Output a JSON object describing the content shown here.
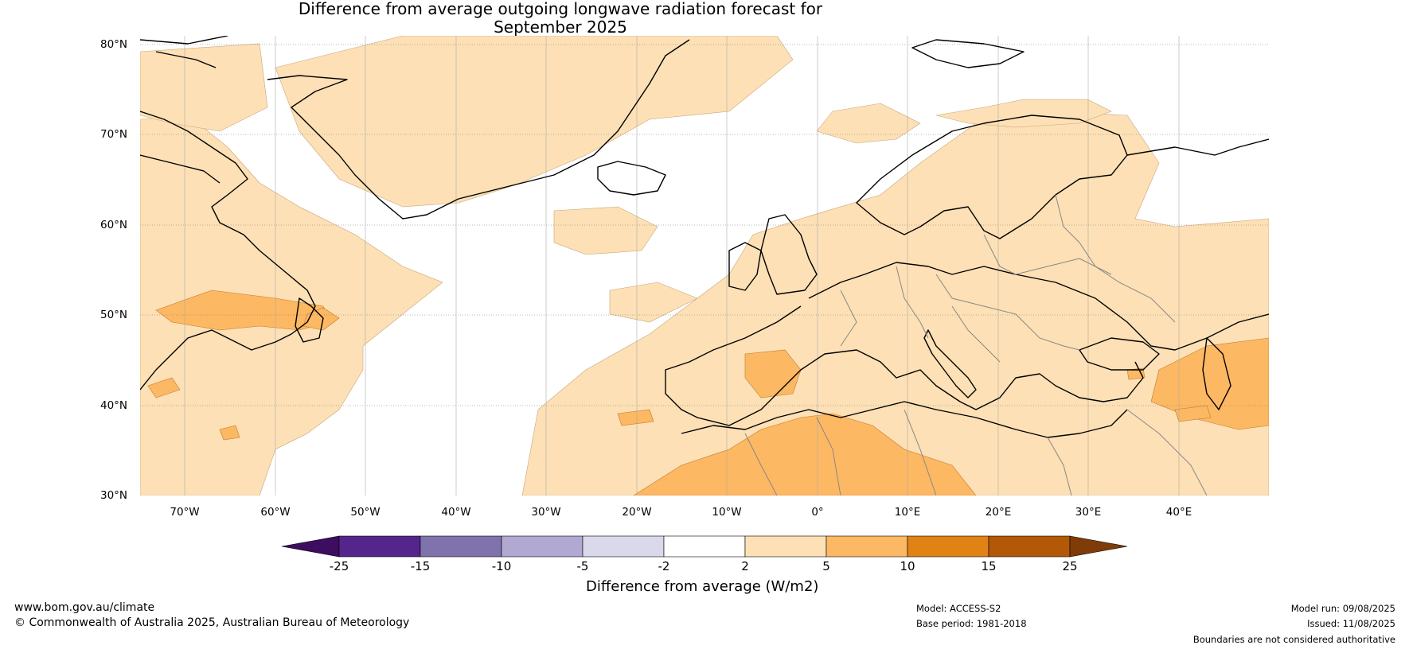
{
  "title_line1": "Difference from average outgoing longwave radiation forecast for",
  "title_line2": "September 2025",
  "latitude_labels": [
    "80°N",
    "70°N",
    "60°N",
    "50°N",
    "40°N",
    "30°N"
  ],
  "longitude_labels": [
    "70°W",
    "60°W",
    "50°W",
    "40°W",
    "30°W",
    "20°W",
    "10°W",
    "0°",
    "10°E",
    "20°E",
    "30°E",
    "40°E"
  ],
  "legend": {
    "title": "Difference from average (W/m2)",
    "ticks": [
      "-25",
      "-15",
      "-10",
      "-5",
      "-2",
      "2",
      "5",
      "10",
      "15",
      "25"
    ],
    "bins": [
      {
        "range": "< -25",
        "color": "#3d0d5f"
      },
      {
        "range": "-25 to -15",
        "color": "#54258a"
      },
      {
        "range": "-15 to -10",
        "color": "#8073ad"
      },
      {
        "range": "-10 to -5",
        "color": "#b1a9d2"
      },
      {
        "range": "-5 to -2",
        "color": "#d9d9eb"
      },
      {
        "range": "-2 to 2",
        "color": "#ffffff"
      },
      {
        "range": "2 to 5",
        "color": "#fde0b5"
      },
      {
        "range": "5 to 10",
        "color": "#fdb863"
      },
      {
        "range": "10 to 15",
        "color": "#e08214"
      },
      {
        "range": "15 to 25",
        "color": "#b35806"
      },
      {
        "range": "> 25",
        "color": "#7f3b08"
      }
    ]
  },
  "footer": {
    "website": "www.bom.gov.au/climate",
    "copyright": "© Commonwealth of Australia 2025, Australian Bureau of Meteorology",
    "model": "Model: ACCESS-S2",
    "base_period": "Base period: 1981-2018",
    "model_run": "Model run: 09/08/2025",
    "issued": "Issued: 11/08/2025",
    "disclaimer": "Boundaries are not considered authoritative"
  }
}
